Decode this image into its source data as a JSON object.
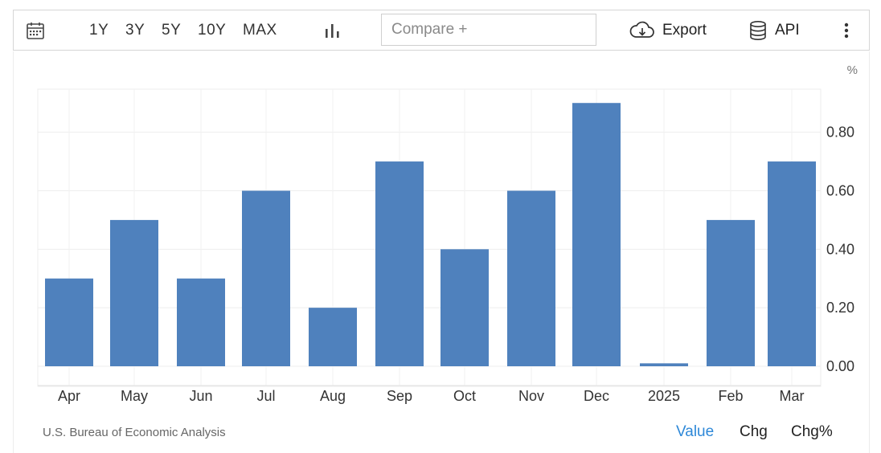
{
  "toolbar": {
    "ranges": [
      "1Y",
      "3Y",
      "5Y",
      "10Y",
      "MAX"
    ],
    "compare_placeholder": "Compare +",
    "export_label": "Export",
    "api_label": "API",
    "icons": [
      "calendar-icon",
      "bar-chart-icon",
      "cloud-download-icon",
      "database-icon",
      "more-vertical-icon"
    ]
  },
  "chart_data": {
    "type": "bar",
    "unit_label": "%",
    "categories": [
      "Apr",
      "May",
      "Jun",
      "Jul",
      "Aug",
      "Sep",
      "Oct",
      "Nov",
      "Dec",
      "2025",
      "Feb",
      "Mar"
    ],
    "values": [
      0.3,
      0.5,
      0.3,
      0.6,
      0.2,
      0.7,
      0.4,
      0.6,
      0.9,
      0.01,
      0.5,
      0.7
    ],
    "y_ticks": [
      "0.00",
      "0.20",
      "0.40",
      "0.60",
      "0.80"
    ],
    "ylim": [
      0,
      0.95
    ],
    "bar_color": "#4f81bd",
    "grid": true
  },
  "footer": {
    "source": "U.S. Bureau of Economic Analysis",
    "tabs": [
      "Value",
      "Chg",
      "Chg%"
    ],
    "active_tab": "Value",
    "active_color": "#2e88d8"
  }
}
